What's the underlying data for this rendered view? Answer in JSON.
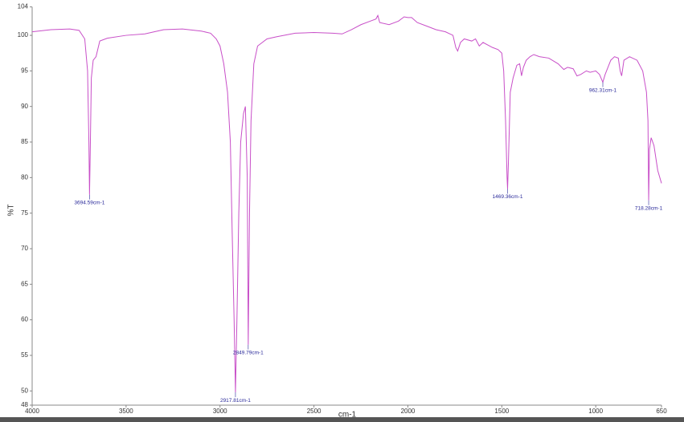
{
  "chart_data": {
    "type": "line",
    "x_label": "cm-1",
    "y_label": "%T",
    "xlim": [
      4000,
      650
    ],
    "ylim": [
      48,
      104
    ],
    "xticks": [
      4000,
      3500,
      3000,
      2500,
      2000,
      1500,
      1000,
      650
    ],
    "yticks": [
      48,
      50,
      55,
      60,
      65,
      70,
      75,
      80,
      85,
      90,
      95,
      100,
      104
    ],
    "x": [
      4000,
      3900,
      3800,
      3750,
      3720,
      3705,
      3698,
      3694.59,
      3690,
      3685,
      3675,
      3660,
      3640,
      3600,
      3500,
      3400,
      3350,
      3300,
      3200,
      3100,
      3050,
      3020,
      3000,
      2980,
      2960,
      2945,
      2935,
      2925,
      2917.81,
      2910,
      2900,
      2890,
      2875,
      2865,
      2855,
      2849.79,
      2843,
      2835,
      2820,
      2800,
      2750,
      2700,
      2600,
      2500,
      2400,
      2350,
      2300,
      2250,
      2200,
      2170,
      2160,
      2150,
      2100,
      2050,
      2020,
      2000,
      1980,
      1950,
      1900,
      1850,
      1800,
      1760,
      1745,
      1735,
      1720,
      1700,
      1660,
      1640,
      1620,
      1600,
      1550,
      1520,
      1500,
      1490,
      1480,
      1472,
      1469.36,
      1465,
      1455,
      1440,
      1420,
      1405,
      1395,
      1385,
      1370,
      1350,
      1330,
      1300,
      1250,
      1200,
      1170,
      1150,
      1120,
      1100,
      1080,
      1050,
      1030,
      1000,
      980,
      962.31,
      950,
      920,
      900,
      880,
      870,
      862,
      850,
      820,
      780,
      750,
      730,
      722,
      718.28,
      714,
      705,
      690,
      670,
      650
    ],
    "series": [
      {
        "color": "#c84fc8",
        "values": [
          100.5,
          100.8,
          100.9,
          100.7,
          99.5,
          95,
          85,
          77.6,
          85,
          94,
          96.5,
          97,
          99.2,
          99.6,
          100,
          100.2,
          100.5,
          100.8,
          100.9,
          100.6,
          100.3,
          99.5,
          98.5,
          96,
          92,
          85,
          72,
          60,
          49.8,
          60,
          75,
          85,
          89,
          90,
          80,
          56.5,
          75,
          88,
          96,
          98.5,
          99.5,
          99.8,
          100.3,
          100.4,
          100.3,
          100.2,
          100.8,
          101.5,
          102,
          102.3,
          102.8,
          101.8,
          101.5,
          102,
          102.6,
          102.5,
          102.5,
          101.8,
          101.3,
          100.8,
          100.5,
          100,
          98.3,
          97.8,
          99,
          99.5,
          99.2,
          99.5,
          98.5,
          99,
          98.3,
          98,
          97.5,
          95,
          88,
          80,
          78.4,
          82,
          92,
          94,
          95.8,
          96,
          94.3,
          95.5,
          96.5,
          97,
          97.3,
          97,
          96.8,
          96,
          95.2,
          95.5,
          95.3,
          94.3,
          94.5,
          95,
          94.8,
          95,
          94.5,
          93.4,
          94.5,
          96.5,
          97,
          96.8,
          95,
          94.3,
          96.5,
          97,
          96.5,
          95,
          92,
          88,
          76.8,
          84,
          85.6,
          84.5,
          81,
          79.2
        ]
      }
    ],
    "peaks": [
      {
        "value": 3694.59,
        "label": "3694.59cm-1"
      },
      {
        "value": 2917.81,
        "label": "2917.81cm-1"
      },
      {
        "value": 2849.79,
        "label": "2849.79cm-1"
      },
      {
        "value": 1469.36,
        "label": "1469.36cm-1"
      },
      {
        "value": 962.31,
        "label": "962.31cm-1"
      },
      {
        "value": 718.28,
        "label": "718.28cm-1"
      }
    ]
  }
}
